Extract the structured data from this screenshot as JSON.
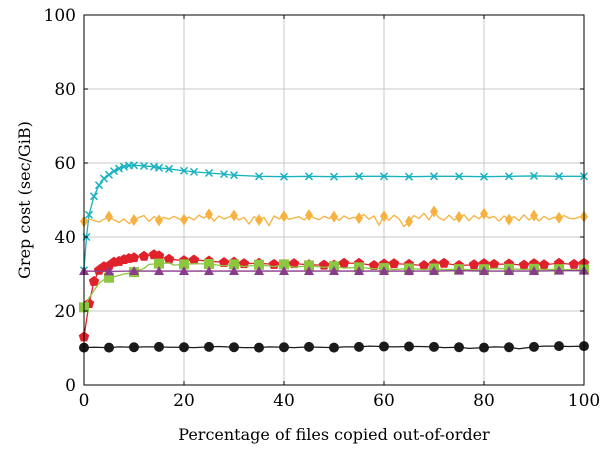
{
  "chart_data": {
    "type": "line",
    "xlabel": "Percentage of files copied out-of-order",
    "ylabel": "Grep cost (sec/GiB)",
    "xlim": [
      0,
      100
    ],
    "ylim": [
      0,
      100
    ],
    "xticks": [
      0,
      20,
      40,
      60,
      80,
      100
    ],
    "yticks": [
      0,
      20,
      40,
      60,
      80,
      100
    ],
    "grid": true,
    "series": [
      {
        "color": "#17b2c0",
        "marker": "x",
        "x": [
          0,
          0.5,
          1,
          2,
          3,
          4,
          5,
          6,
          7,
          8,
          9,
          10,
          12,
          14,
          15,
          17,
          20,
          22,
          25,
          28,
          30,
          35,
          40,
          45,
          50,
          55,
          60,
          65,
          70,
          75,
          80,
          85,
          90,
          95,
          100
        ],
        "y": [
          31,
          40,
          46,
          51,
          54,
          55.8,
          56.8,
          57.8,
          58.5,
          59,
          59.3,
          59.4,
          59.2,
          59,
          58.7,
          58.4,
          57.9,
          57.6,
          57.3,
          57,
          56.7,
          56.4,
          56.3,
          56.4,
          56.3,
          56.4,
          56.4,
          56.3,
          56.4,
          56.4,
          56.3,
          56.4,
          56.5,
          56.4,
          56.4
        ]
      },
      {
        "color": "#f6b13f",
        "marker": "diamond",
        "x": [
          0,
          1,
          2,
          3,
          4,
          5,
          6,
          7,
          8,
          9,
          10,
          11,
          12,
          13,
          14,
          15,
          16,
          17,
          18,
          19,
          20,
          21,
          22,
          23,
          24,
          25,
          26,
          27,
          28,
          29,
          30,
          31,
          32,
          33,
          34,
          35,
          36,
          37,
          38,
          39,
          40,
          41,
          42,
          43,
          44,
          45,
          46,
          47,
          48,
          49,
          50,
          51,
          52,
          53,
          54,
          55,
          56,
          57,
          58,
          59,
          60,
          61,
          62,
          63,
          64,
          65,
          66,
          67,
          68,
          69,
          70,
          71,
          72,
          73,
          74,
          75,
          76,
          77,
          78,
          79,
          80,
          81,
          82,
          83,
          84,
          85,
          86,
          87,
          88,
          89,
          90,
          91,
          92,
          93,
          94,
          95,
          96,
          97,
          98,
          99,
          100
        ],
        "y": [
          44.2,
          44.8,
          44.5,
          44,
          44.8,
          45.5,
          44.6,
          43.9,
          44.9,
          43.6,
          44.6,
          45.3,
          45.8,
          44.2,
          45.5,
          44.5,
          45.3,
          44.8,
          45.6,
          44.9,
          44.7,
          45.4,
          44.6,
          45.9,
          45.1,
          46.1,
          44.3,
          45.7,
          44.9,
          45.4,
          45.8,
          44.6,
          45.3,
          43.5,
          45.5,
          44.6,
          45.3,
          43.1,
          45.7,
          44.9,
          45.6,
          44.8,
          45.1,
          45.5,
          44.6,
          45.9,
          45.2,
          44.7,
          45.6,
          45,
          45.5,
          44.5,
          45.7,
          44.9,
          45.3,
          45.1,
          46.1,
          44.8,
          45.7,
          43.2,
          45.6,
          44.5,
          45.9,
          44.9,
          42.8,
          44.2,
          45.8,
          45,
          46.4,
          44.6,
          46.9,
          45.2,
          44.5,
          45.9,
          44.6,
          45.4,
          46,
          44.4,
          45.8,
          44.9,
          46.3,
          45.1,
          45.6,
          44.3,
          45.7,
          44.7,
          45.5,
          44.4,
          46,
          44.6,
          45.8,
          44.3,
          45.6,
          44.7,
          45.3,
          45.2,
          45.8,
          45.1,
          44.9,
          45.4,
          45.5
        ],
        "markers_at": [
          0,
          5,
          10,
          15,
          20,
          25,
          30,
          35,
          40,
          45,
          50,
          55,
          60,
          65,
          70,
          75,
          80,
          85,
          90,
          95,
          100
        ]
      },
      {
        "color": "#e0202b",
        "marker": "pentagon",
        "x": [
          0,
          1,
          2,
          3,
          4,
          5,
          6,
          7,
          8,
          9,
          10,
          12,
          14,
          15,
          17,
          20,
          22,
          25,
          28,
          30,
          32,
          35,
          38,
          40,
          42,
          45,
          48,
          50,
          52,
          55,
          58,
          60,
          62,
          65,
          68,
          70,
          72,
          75,
          78,
          80,
          82,
          85,
          88,
          90,
          92,
          95,
          98,
          100
        ],
        "y": [
          13,
          22,
          28,
          31,
          32,
          32.2,
          33.2,
          33.4,
          33.9,
          34.2,
          34.4,
          34.8,
          35.2,
          34.9,
          34,
          33.6,
          33.8,
          33.5,
          33.1,
          33.2,
          32.8,
          32.9,
          32.6,
          32.6,
          32.8,
          32.5,
          32.4,
          32.4,
          32.9,
          32.9,
          32.3,
          32.7,
          32.8,
          32.6,
          32.3,
          32.7,
          32.9,
          32.3,
          32.5,
          32.8,
          32.6,
          32.7,
          32.4,
          32.8,
          32.5,
          32.9,
          32.6,
          32.9
        ]
      },
      {
        "color": "#8dc63f",
        "marker": "square",
        "x": [
          0,
          1,
          2,
          3,
          4,
          5,
          6,
          7,
          8,
          9,
          10,
          12,
          13,
          15,
          17,
          18,
          20,
          22,
          25,
          28,
          30,
          32,
          35,
          38,
          40,
          42,
          45,
          48,
          50,
          52,
          55,
          58,
          60,
          62,
          65,
          68,
          70,
          72,
          75,
          78,
          80,
          82,
          85,
          88,
          90,
          92,
          95,
          98,
          100
        ],
        "y": [
          21,
          23.5,
          25.5,
          27.5,
          28.5,
          29,
          29.3,
          29.6,
          30,
          30.2,
          30.5,
          31.5,
          32.6,
          32.8,
          33,
          32.4,
          32.6,
          32.8,
          32.7,
          32.2,
          32.6,
          32,
          32.5,
          32,
          32.6,
          31.8,
          32.3,
          31.8,
          32.1,
          31.6,
          31.8,
          31.4,
          31.6,
          31.2,
          31.5,
          31.2,
          31.5,
          31.2,
          31.3,
          31.1,
          31.3,
          31.5,
          31.4,
          31.2,
          31.4,
          31.2,
          31.3,
          31.1,
          31.2
        ],
        "markers_at": [
          0,
          5,
          10,
          15,
          20,
          25,
          30,
          35,
          40,
          45,
          50,
          55,
          60,
          65,
          70,
          75,
          80,
          85,
          90,
          95,
          100
        ]
      },
      {
        "color": "#8a3c8c",
        "marker": "triangle",
        "x": [
          0,
          5,
          10,
          15,
          20,
          25,
          30,
          35,
          40,
          45,
          50,
          55,
          60,
          65,
          70,
          75,
          80,
          85,
          90,
          95,
          100
        ],
        "y": [
          30.8,
          30.7,
          30.8,
          30.8,
          30.8,
          30.8,
          30.8,
          30.8,
          30.8,
          30.8,
          30.8,
          30.8,
          30.8,
          30.8,
          30.8,
          30.9,
          30.8,
          30.8,
          30.8,
          30.9,
          30.9
        ]
      },
      {
        "color": "#1a1a1a",
        "marker": "circle",
        "x": [
          0,
          2,
          5,
          7,
          10,
          12,
          15,
          17,
          20,
          22,
          25,
          27,
          30,
          32,
          35,
          37,
          40,
          42,
          45,
          47,
          50,
          52,
          55,
          57,
          60,
          62,
          65,
          67,
          70,
          72,
          75,
          77,
          80,
          82,
          85,
          87,
          90,
          92,
          95,
          97,
          100
        ],
        "y": [
          10.1,
          10.2,
          10.1,
          10.3,
          10.2,
          10.3,
          10.3,
          10.2,
          10.2,
          10.1,
          10.3,
          10.4,
          10.2,
          10.1,
          10.1,
          10.3,
          10.2,
          10.1,
          10.3,
          10.2,
          10.1,
          10.3,
          10.3,
          10.5,
          10.4,
          10.3,
          10.4,
          10.4,
          10.3,
          10.1,
          10.2,
          9.9,
          10.1,
          10.3,
          10.2,
          9.8,
          10.3,
          10.5,
          10.5,
          10.4,
          10.5
        ],
        "markers_at": [
          0,
          5,
          10,
          15,
          20,
          25,
          30,
          35,
          40,
          45,
          50,
          55,
          60,
          65,
          70,
          75,
          80,
          85,
          90,
          95,
          100
        ]
      }
    ]
  }
}
